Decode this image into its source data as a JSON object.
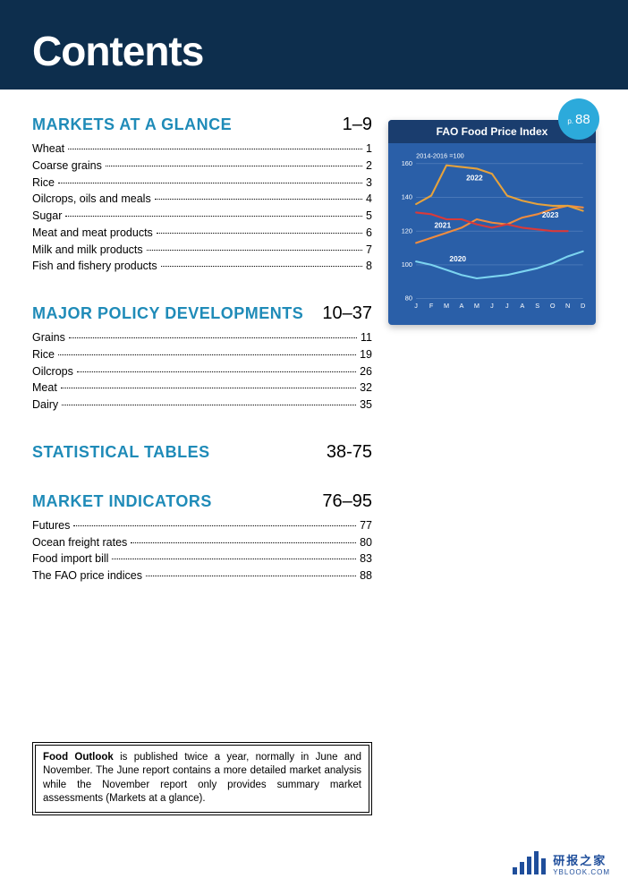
{
  "header": {
    "title": "Contents"
  },
  "sections": [
    {
      "title": "MARKETS AT A GLANCE",
      "range": "1–9",
      "items": [
        {
          "label": "Wheat",
          "page": "1"
        },
        {
          "label": "Coarse grains",
          "page": "2"
        },
        {
          "label": "Rice",
          "page": "3"
        },
        {
          "label": "Oilcrops, oils and meals",
          "page": "4"
        },
        {
          "label": "Sugar",
          "page": "5"
        },
        {
          "label": "Meat and meat products",
          "page": "6"
        },
        {
          "label": "Milk and milk products",
          "page": "7"
        },
        {
          "label": "Fish and fishery products",
          "page": "8"
        }
      ]
    },
    {
      "title": "MAJOR POLICY DEVELOPMENTS",
      "range": "10–37",
      "items": [
        {
          "label": "Grains",
          "page": "11"
        },
        {
          "label": "Rice",
          "page": "19"
        },
        {
          "label": "Oilcrops",
          "page": "26"
        },
        {
          "label": "Meat",
          "page": "32"
        },
        {
          "label": "Dairy",
          "page": "35"
        }
      ]
    },
    {
      "title": "STATISTICAL TABLES",
      "range": "38-75",
      "items": []
    },
    {
      "title": "MARKET INDICATORS",
      "range": "76–95",
      "items": [
        {
          "label": "Futures",
          "page": "77"
        },
        {
          "label": "Ocean freight rates",
          "page": "80"
        },
        {
          "label": "Food import bill",
          "page": "83"
        },
        {
          "label": "The FAO price indices",
          "page": "88"
        }
      ]
    }
  ],
  "chart": {
    "badge_prefix": "p.",
    "badge_page": "88",
    "title": "FAO Food Price Index",
    "subtitle": "2014-2016 =100",
    "type": "line",
    "ylim": [
      80,
      160
    ],
    "ytick_step": 20,
    "yticks": [
      80,
      100,
      120,
      140,
      160
    ],
    "xticks": [
      "J",
      "F",
      "M",
      "A",
      "M",
      "J",
      "J",
      "A",
      "S",
      "O",
      "N",
      "D"
    ],
    "background_color": "#2a5fa8",
    "header_color": "#1a3d6e",
    "grid_color": "#5b86c1",
    "axis_label_color": "#ffffff",
    "axis_fontsize": 7,
    "series": [
      {
        "name": "2020",
        "color": "#7cd4f0",
        "label_x": 2.2,
        "label_y": 102,
        "values": [
          102,
          100,
          97,
          94,
          92,
          93,
          94,
          96,
          98,
          101,
          105,
          108
        ]
      },
      {
        "name": "2021",
        "color": "#f08c3e",
        "label_x": 1.2,
        "label_y": 122,
        "values": [
          113,
          116,
          119,
          122,
          127,
          125,
          124,
          128,
          130,
          133,
          135,
          134
        ]
      },
      {
        "name": "2022",
        "color": "#e6a23c",
        "label_x": 3.3,
        "label_y": 150,
        "values": [
          136,
          141,
          159,
          158,
          157,
          154,
          141,
          138,
          136,
          135,
          135,
          132
        ]
      },
      {
        "name": "2023",
        "color": "#d93a3a",
        "label_x": 8.3,
        "label_y": 128,
        "values": [
          131,
          130,
          127,
          127,
          124,
          122,
          124,
          122,
          121,
          120,
          120,
          null
        ]
      }
    ]
  },
  "infobox": {
    "bold_lead": "Food Outlook",
    "text": " is published twice a year, normally in June and November. The June report contains a more detailed market analysis while the November report only provides summary market assessments (Markets at a glance)."
  },
  "watermark": {
    "cn": "研报之家",
    "en": "YBLOOK.COM",
    "bar_color": "#1f4e9b",
    "bars": [
      8,
      14,
      20,
      26,
      18
    ]
  }
}
